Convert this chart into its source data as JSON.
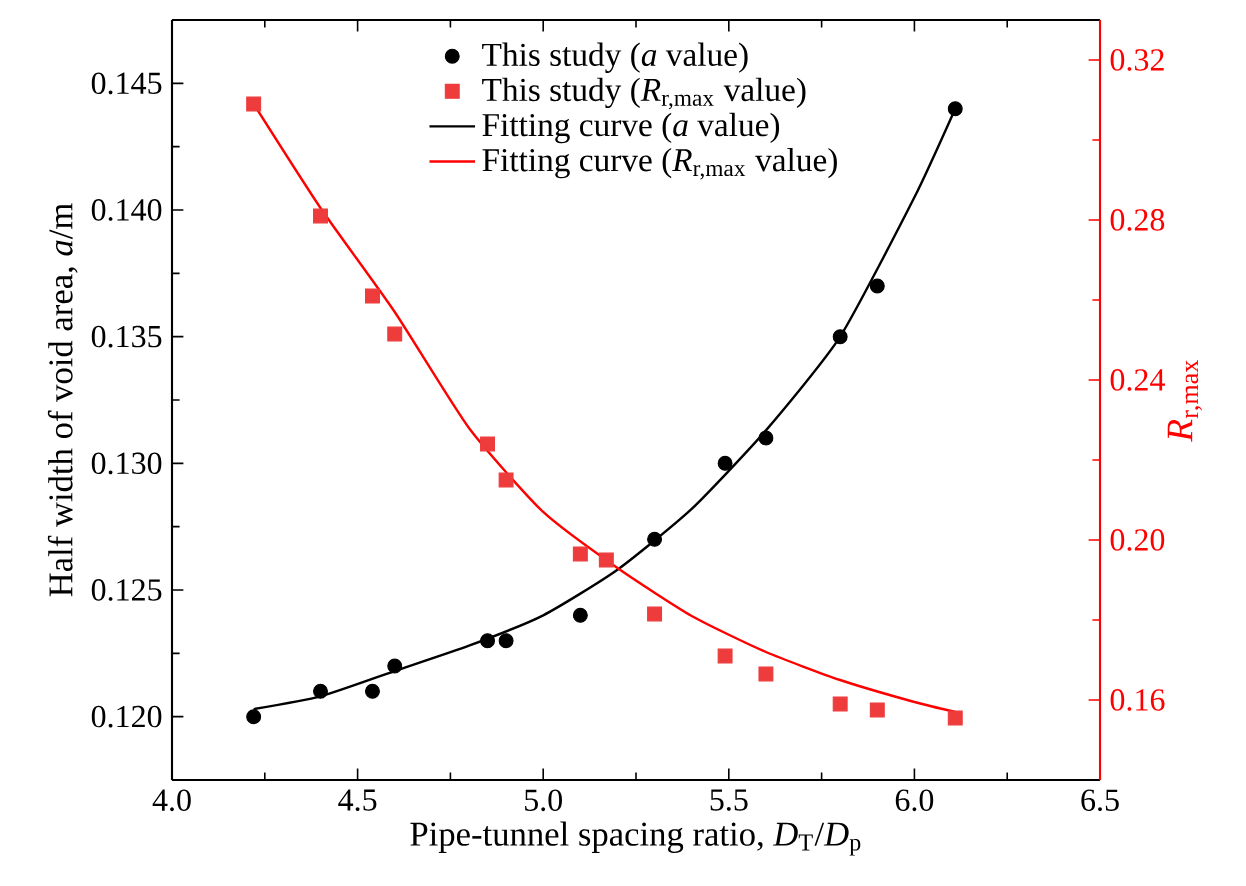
{
  "chart_data": {
    "type": "scatter",
    "xlabel": "Pipe-tunnel spacing ratio, *D*$_{T}$/*D*$_{p}$",
    "ylabel": "Half width of void area, *a*/m",
    "y2label": "*R*$_{r,max}$",
    "xlim": [
      4.0,
      6.5
    ],
    "xticks": [
      {
        "value": 4.0,
        "label": "4.0"
      },
      {
        "value": 4.5,
        "label": "4.5"
      },
      {
        "value": 5.0,
        "label": "5.0"
      },
      {
        "value": 5.5,
        "label": "5.5"
      },
      {
        "value": 6.0,
        "label": "6.0"
      },
      {
        "value": 6.5,
        "label": "6.5"
      }
    ],
    "ylim": [
      0.1175,
      0.1475
    ],
    "yticks": [
      {
        "value": 0.12,
        "label": "0.120"
      },
      {
        "value": 0.125,
        "label": "0.125"
      },
      {
        "value": 0.13,
        "label": "0.130"
      },
      {
        "value": 0.135,
        "label": "0.135"
      },
      {
        "value": 0.14,
        "label": "0.140"
      },
      {
        "value": 0.145,
        "label": "0.145"
      }
    ],
    "y2lim": [
      0.14,
      0.33
    ],
    "y2ticks": [
      {
        "value": 0.16,
        "label": "0.16"
      },
      {
        "value": 0.2,
        "label": "0.20"
      },
      {
        "value": 0.24,
        "label": "0.24"
      },
      {
        "value": 0.28,
        "label": "0.28"
      },
      {
        "value": 0.32,
        "label": "0.32"
      }
    ],
    "legend": "top",
    "series": [
      {
        "name": "This study (*a* value)",
        "marker": "circle",
        "color": "#000000",
        "x": [
          4.22,
          4.4,
          4.54,
          4.6,
          4.85,
          4.9,
          5.1,
          5.3,
          5.49,
          5.6,
          5.8,
          5.9,
          6.11
        ],
        "values": [
          0.12,
          0.121,
          0.121,
          0.122,
          0.123,
          0.123,
          0.124,
          0.127,
          0.13,
          0.131,
          0.135,
          0.137,
          0.144
        ]
      },
      {
        "name": "This study (*R*$_{r,max}$ value)",
        "marker": "square",
        "axis": "y2",
        "color": "#ee3b3b",
        "x": [
          4.22,
          4.4,
          4.54,
          4.6,
          4.85,
          4.9,
          5.1,
          5.17,
          5.3,
          5.49,
          5.6,
          5.8,
          5.9,
          6.11
        ],
        "values": [
          0.309,
          0.281,
          0.261,
          0.2515,
          0.224,
          0.215,
          0.1965,
          0.195,
          0.1815,
          0.171,
          0.1665,
          0.159,
          0.1575,
          0.1555
        ]
      },
      {
        "name": "Fitting curve (*a* value)",
        "type": "line",
        "color": "#000000",
        "x": [
          4.22,
          4.4,
          4.6,
          4.8,
          5.0,
          5.2,
          5.4,
          5.6,
          5.8,
          6.0,
          6.11
        ],
        "values": [
          0.1203,
          0.1208,
          0.1218,
          0.1228,
          0.124,
          0.1258,
          0.1282,
          0.1313,
          0.135,
          0.1405,
          0.144
        ]
      },
      {
        "name": "Fitting curve (*R*$_{r,max}$ value)",
        "type": "line",
        "axis": "y2",
        "color": "#ff0000",
        "x": [
          4.22,
          4.4,
          4.6,
          4.8,
          5.0,
          5.2,
          5.4,
          5.6,
          5.8,
          6.0,
          6.11
        ],
        "values": [
          0.309,
          0.283,
          0.257,
          0.228,
          0.207,
          0.193,
          0.181,
          0.172,
          0.165,
          0.1595,
          0.157
        ]
      }
    ]
  }
}
